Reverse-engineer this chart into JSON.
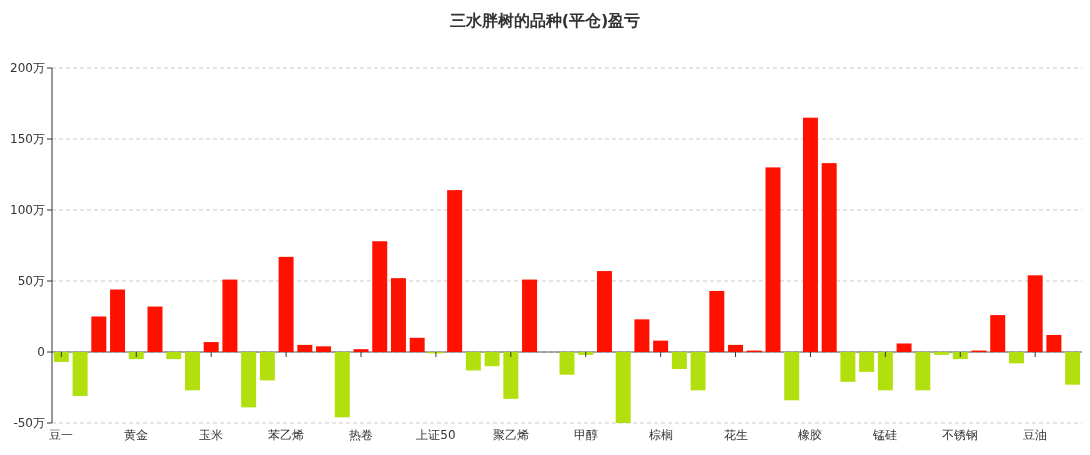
{
  "chart_data": {
    "type": "bar",
    "title": "三水胖树的品种(平仓)盈亏",
    "categories": [
      "豆一",
      null,
      null,
      null,
      "黄金",
      null,
      null,
      null,
      "玉米",
      null,
      null,
      null,
      "苯乙烯",
      null,
      null,
      null,
      "热卷",
      null,
      null,
      null,
      "上证50",
      null,
      null,
      null,
      "聚乙烯",
      null,
      null,
      null,
      "甲醇",
      null,
      null,
      null,
      "棕榈",
      null,
      null,
      null,
      "花生",
      null,
      null,
      null,
      "橡胶",
      null,
      null,
      null,
      "锰硅",
      null,
      null,
      null,
      "不锈钢",
      null,
      null,
      null,
      "豆油",
      null,
      null
    ],
    "values": [
      -7,
      -31,
      25,
      44,
      -5,
      32,
      -5,
      -27,
      7,
      51,
      -39,
      -20,
      67,
      5,
      4,
      -46,
      2,
      78,
      52,
      10,
      -1,
      114,
      -13,
      -10,
      -33,
      51,
      0,
      -16,
      -2,
      57,
      -50,
      23,
      8,
      -12,
      -27,
      43,
      5,
      1,
      130,
      -34,
      165,
      133,
      -21,
      -14,
      -27,
      6,
      -27,
      -2,
      -5,
      1,
      26,
      -8,
      54,
      12,
      -23
    ],
    "colors": [
      "#b2e00f",
      "#b2e00f",
      "#ff1100",
      "#ff1100",
      "#b2e00f",
      "#ff1100",
      "#b2e00f",
      "#b2e00f",
      "#ff1100",
      "#ff1100",
      "#b2e00f",
      "#b2e00f",
      "#ff1100",
      "#ff1100",
      "#ff1100",
      "#b2e00f",
      "#ff1100",
      "#ff1100",
      "#ff1100",
      "#ff1100",
      "#b2e00f",
      "#ff1100",
      "#b2e00f",
      "#b2e00f",
      "#b2e00f",
      "#ff1100",
      "#b2e00f",
      "#b2e00f",
      "#b2e00f",
      "#ff1100",
      "#b2e00f",
      "#ff1100",
      "#ff1100",
      "#b2e00f",
      "#b2e00f",
      "#ff1100",
      "#ff1100",
      "#ff1100",
      "#ff1100",
      "#b2e00f",
      "#ff1100",
      "#ff1100",
      "#b2e00f",
      "#b2e00f",
      "#b2e00f",
      "#ff1100",
      "#b2e00f",
      "#b2e00f",
      "#b2e00f",
      "#ff1100",
      "#ff1100",
      "#b2e00f",
      "#ff1100",
      "#ff1100",
      "#b2e00f"
    ],
    "ylim": [
      -50,
      200
    ],
    "yticks": [
      {
        "value": -50,
        "label": "-50万"
      },
      {
        "value": 0,
        "label": "0"
      },
      {
        "value": 50,
        "label": "50万"
      },
      {
        "value": 100,
        "label": "100万"
      },
      {
        "value": 150,
        "label": "150万"
      },
      {
        "value": 200,
        "label": "200万"
      }
    ],
    "grid": "y"
  }
}
